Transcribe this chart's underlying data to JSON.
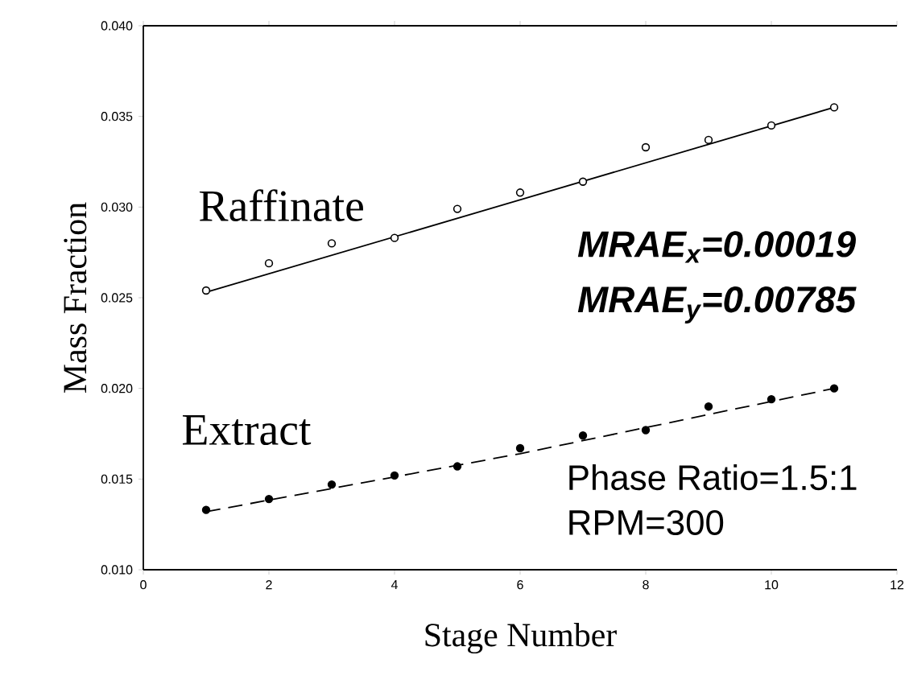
{
  "chart_data": {
    "type": "scatter",
    "xlabel": "Stage Number",
    "ylabel": "Mass Fraction",
    "xlim": [
      0,
      12
    ],
    "xticks": [
      0,
      2,
      4,
      6,
      8,
      10,
      12
    ],
    "ylim": [
      0.01,
      0.04
    ],
    "yticks": [
      {
        "value": 0.01,
        "label": "0.010"
      },
      {
        "value": 0.015,
        "label": "0.015"
      },
      {
        "value": 0.02,
        "label": "0.020"
      },
      {
        "value": 0.025,
        "label": "0.025"
      },
      {
        "value": 0.03,
        "label": "0.030"
      },
      {
        "value": 0.035,
        "label": "0.035"
      },
      {
        "value": 0.04,
        "label": "0.040"
      }
    ],
    "grid": false,
    "legend": false,
    "marker": "circle",
    "series": [
      {
        "name": "Raffinate",
        "color": "#000000",
        "x": [
          1,
          2,
          3,
          4,
          5,
          6,
          7,
          8,
          9,
          10,
          11
        ],
        "values": [
          0.0254,
          0.0269,
          0.028,
          0.0283,
          0.0299,
          0.0308,
          0.0314,
          0.0333,
          0.0337,
          0.0345,
          0.0355
        ]
      },
      {
        "type": "line",
        "marker": "none",
        "line_style": "solid",
        "color": "#000000",
        "x": [
          1,
          11
        ],
        "values": [
          0.0253,
          0.0355
        ]
      },
      {
        "name": "Extract",
        "color": "#000000",
        "x": [
          1,
          2,
          3,
          4,
          5,
          6,
          7,
          8,
          9,
          10,
          11
        ],
        "values": [
          0.0133,
          0.0139,
          0.0147,
          0.0152,
          0.0157,
          0.0167,
          0.0174,
          0.0177,
          0.019,
          0.0194,
          0.02
        ]
      },
      {
        "type": "line",
        "marker": "none",
        "line_style": "dashed",
        "color": "#000000",
        "x": [
          1,
          6,
          11
        ],
        "values": [
          0.0132,
          0.0164,
          0.02
        ]
      }
    ],
    "annotations": [
      "MRAE$_{x}$=0.00019",
      "MRAE$_{y}$=0.00785",
      "Phase Ratio=1.5:1",
      "RPM=300"
    ]
  }
}
